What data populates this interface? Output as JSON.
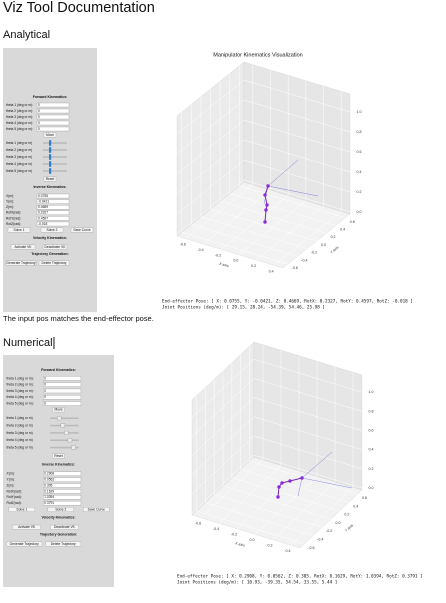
{
  "page_title": "Viz Tool Documentation",
  "sections": [
    {
      "heading": "Analytical",
      "figure": {
        "title": "Manipulator Kinematics Visualization",
        "panel": {
          "fk_heading": "Forward Kinematics:",
          "fk_rows": [
            {
              "label": "theta 1 (deg or m):",
              "value": "0"
            },
            {
              "label": "theta 2 (deg or m):",
              "value": "0"
            },
            {
              "label": "theta 3 (deg or m):",
              "value": "0"
            },
            {
              "label": "theta 4 (deg or m):",
              "value": "0"
            },
            {
              "label": "theta 5 (deg or m):",
              "value": "0"
            }
          ],
          "move": "Move",
          "sliders": [
            "theta 1 (deg or m)",
            "theta 2 (deg or m)",
            "theta 3 (deg or m)",
            "theta 4 (deg or m)",
            "theta 5 (deg or m)"
          ],
          "reset": "Reset",
          "ik_heading": "Inverse Kinematics:",
          "ik_rows": [
            {
              "label": "X(m):",
              "value": "0.0755"
            },
            {
              "label": "Y(m):",
              "value": "-0.0421"
            },
            {
              "label": "Z(m):",
              "value": "0.4669"
            },
            {
              "label": "RotX(rad):",
              "value": "0.2327"
            },
            {
              "label": "RotY(rad):",
              "value": "0.4597"
            },
            {
              "label": "RotZ(rad):",
              "value": "-0.018"
            }
          ],
          "ik_buttons": [
            "Solve 1",
            "Solve 2",
            "Save Curve"
          ],
          "vk_heading": "Velocity Kinematics:",
          "vk_buttons": [
            "Activate VK",
            "Deactivate VK"
          ],
          "tg_heading": "Trajectory Generation:",
          "tg_buttons": [
            "Generate Trajectory",
            "Delete Trajectory"
          ]
        },
        "plot": {
          "xticks": [
            "-0.6",
            "-0.4",
            "-0.2",
            "0.0",
            "0.2",
            "0.4"
          ],
          "yticks": [
            "-0.6",
            "-0.4",
            "-0.2",
            "0.0",
            "0.2",
            "0.4",
            "0.6"
          ],
          "zticks": [
            "0.0",
            "0.2",
            "0.4",
            "0.6",
            "0.8",
            "1.0"
          ],
          "xlabel": "X axis",
          "ylabel": "Y axis"
        },
        "pose": "End-effector Pose:    [ X: 0.0755,  Y: -0.0421,  Z: 0.4669,  RotX: 0.2327,  RotY: 0.4597,  RotZ: -0.018 ]",
        "joints": "Joint Positions (deg/m):    [ 29.15,  28.24,  -54.39,  54.46,  25.98 ]"
      },
      "caption": "The input pos matches the end-effector pose."
    },
    {
      "heading": "Numerical",
      "figure": {
        "panel": {
          "fk_heading": "Forward Kinematics:",
          "fk_rows": [
            {
              "label": "theta 1 (deg or m):",
              "value": "0"
            },
            {
              "label": "theta 2 (deg or m):",
              "value": "0"
            },
            {
              "label": "theta 3 (deg or m):",
              "value": "0"
            },
            {
              "label": "theta 4 (deg or m):",
              "value": "0"
            },
            {
              "label": "theta 5 (deg or m):",
              "value": "0"
            }
          ],
          "move": "Move",
          "sliders": [
            "theta 1 (deg or m)",
            "theta 2 (deg or m)",
            "theta 3 (deg or m)",
            "theta 4 (deg or m)",
            "theta 5 (deg or m)"
          ],
          "reset": "Reset",
          "ik_heading": "Inverse Kinematics:",
          "ik_rows": [
            {
              "label": "X(m):",
              "value": "0.2908"
            },
            {
              "label": "Y(m):",
              "value": "0.0562"
            },
            {
              "label": "Z(m):",
              "value": "0.305"
            },
            {
              "label": "RotX(rad):",
              "value": "0.1629"
            },
            {
              "label": "RotY(rad):",
              "value": "1.0394"
            },
            {
              "label": "RotZ(rad):",
              "value": "0.3791"
            }
          ],
          "ik_buttons": [
            "Solve 1",
            "Solve 2",
            "Save Curve"
          ],
          "vk_heading": "Velocity Kinematics:",
          "vk_buttons": [
            "Activate VK",
            "Deactivate VK"
          ],
          "tg_heading": "Trajectory Generation:",
          "tg_buttons": [
            "Generate Trajectory",
            "Delete Trajectory"
          ]
        },
        "plot": {
          "xticks": [
            "-0.6",
            "-0.4",
            "-0.2",
            "0.0",
            "0.2",
            "0.4"
          ],
          "yticks": [
            "-0.6",
            "-0.4",
            "-0.2",
            "0.0",
            "0.2",
            "0.4",
            "0.6"
          ],
          "zticks": [
            "0.0",
            "0.2",
            "0.4",
            "0.6",
            "0.8",
            "1.0"
          ],
          "xlabel": "X axis",
          "ylabel": "Y axis"
        },
        "pose": "End-effector Pose:    [ X: 0.2908,  Y: 0.0562,  Z: 0.305,  RotX: 0.1629,  RotY: 1.0394,  RotZ: 0.3791 ]",
        "joints": "Joint Positions (deg/m):    [ 10.93,  -39.35,  54.54,  33.55,  5.44 ]"
      }
    }
  ]
}
